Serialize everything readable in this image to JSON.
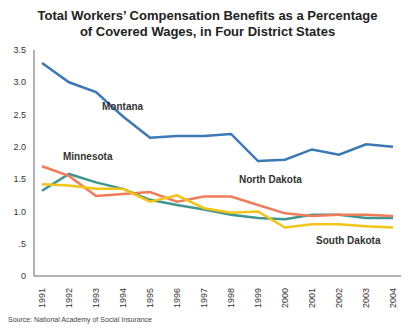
{
  "chart_data": {
    "type": "line",
    "title": "Total Workers’ Compensation Benefits as a Percentage\nof Covered Wages, in Four District States",
    "source": "Source: National Academy of Social Insurance",
    "categories": [
      "1991",
      "1992",
      "1993",
      "1994",
      "1995",
      "1996",
      "1997",
      "1998",
      "1999",
      "2000",
      "2001",
      "2002",
      "2003",
      "2004"
    ],
    "series": [
      {
        "name": "Montana",
        "color": "#3b78b5",
        "values": [
          3.3,
          3.0,
          2.85,
          2.47,
          2.14,
          2.17,
          2.17,
          2.2,
          1.78,
          1.8,
          1.96,
          1.88,
          2.04,
          2.0
        ]
      },
      {
        "name": "Minnesota",
        "color": "#3f9590",
        "values": [
          1.32,
          1.58,
          1.45,
          1.35,
          1.18,
          1.1,
          1.03,
          0.95,
          0.9,
          0.88,
          0.95,
          0.95,
          0.9,
          0.9
        ]
      },
      {
        "name": "North Dakota",
        "color": "#f07c5a",
        "values": [
          1.7,
          1.55,
          1.24,
          1.27,
          1.3,
          1.15,
          1.23,
          1.23,
          1.1,
          0.97,
          0.93,
          0.95,
          0.95,
          0.93
        ]
      },
      {
        "name": "South Dakota",
        "color": "#f2c418",
        "values": [
          1.42,
          1.4,
          1.35,
          1.35,
          1.15,
          1.25,
          1.05,
          0.98,
          1.0,
          0.75,
          0.8,
          0.8,
          0.77,
          0.75
        ]
      }
    ],
    "ylim": [
      0,
      3.5
    ],
    "yticks": [
      0,
      {
        "value": 0.5,
        "label": ".5"
      },
      {
        "value": 1,
        "label": "1.0"
      },
      {
        "value": 1.5,
        "label": "1.5"
      },
      {
        "value": 2,
        "label": "2.0"
      },
      {
        "value": 2.5,
        "label": "2.5"
      },
      {
        "value": 3,
        "label": "3.0"
      },
      {
        "value": 3.5,
        "label": "3.5"
      }
    ],
    "grid": false
  }
}
